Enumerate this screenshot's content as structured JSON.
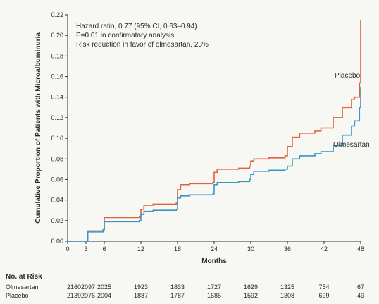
{
  "chart_data": {
    "type": "line",
    "xlabel": "Months",
    "ylabel": "Cumulative Proportion of Patients with Microalbuminuria",
    "xlim": [
      0,
      48
    ],
    "ylim": [
      0,
      0.22
    ],
    "xticks": [
      0,
      3,
      6,
      12,
      18,
      24,
      30,
      36,
      42,
      48
    ],
    "yticks": [
      "0.00",
      "0.02",
      "0.04",
      "0.06",
      "0.08",
      "0.10",
      "0.12",
      "0.14",
      "0.16",
      "0.18",
      "0.20",
      "0.22"
    ],
    "grid": false,
    "annotation": [
      "Hazard ratio, 0.77 (95% CI, 0.63–0.94)",
      "P=0.01 in confirmatory analysis",
      "Risk reduction in favor of olmesartan, 23%"
    ],
    "series": [
      {
        "name": "Placebo",
        "color": "#e0613a",
        "x": [
          0,
          3,
          3.3,
          5.8,
          6,
          11.8,
          12,
          12.5,
          14,
          17.8,
          18,
          18.5,
          20,
          23.8,
          24,
          24.5,
          28,
          29.8,
          30,
          30.5,
          33,
          35.6,
          36,
          36.8,
          38,
          40.5,
          41.5,
          43.5,
          45,
          46.5,
          47,
          47.8,
          48
        ],
        "y": [
          0.0,
          0.0,
          0.01,
          0.012,
          0.023,
          0.024,
          0.031,
          0.035,
          0.036,
          0.037,
          0.05,
          0.055,
          0.056,
          0.057,
          0.067,
          0.07,
          0.071,
          0.073,
          0.078,
          0.08,
          0.081,
          0.083,
          0.092,
          0.101,
          0.105,
          0.107,
          0.11,
          0.12,
          0.13,
          0.138,
          0.14,
          0.154,
          0.215
        ]
      },
      {
        "name": "Olmesartan",
        "color": "#3a95c2",
        "x": [
          0,
          3,
          3.3,
          5.8,
          6,
          11.8,
          12,
          12.5,
          14,
          17.8,
          18,
          18.5,
          20,
          23.8,
          24,
          24.5,
          28,
          29.8,
          30,
          30.5,
          33,
          35.6,
          36,
          36.8,
          38,
          40.5,
          41.5,
          43.5,
          45,
          46.5,
          47,
          47.8,
          48
        ],
        "y": [
          0.0,
          0.0,
          0.009,
          0.011,
          0.019,
          0.02,
          0.026,
          0.029,
          0.03,
          0.031,
          0.042,
          0.044,
          0.045,
          0.046,
          0.055,
          0.057,
          0.058,
          0.06,
          0.065,
          0.068,
          0.069,
          0.07,
          0.073,
          0.08,
          0.083,
          0.085,
          0.087,
          0.093,
          0.103,
          0.112,
          0.117,
          0.13,
          0.15
        ]
      }
    ]
  },
  "risk_table": {
    "title": "No. at Risk",
    "months": [
      0,
      3,
      6,
      12,
      18,
      24,
      30,
      36,
      42,
      48
    ],
    "rows": [
      {
        "label": "Olmesartan",
        "values": [
          "2160",
          "2097",
          "2025",
          "1923",
          "1833",
          "1727",
          "1629",
          "1325",
          "754",
          "67"
        ]
      },
      {
        "label": "Placebo",
        "values": [
          "2139",
          "2076",
          "2004",
          "1887",
          "1787",
          "1685",
          "1592",
          "1308",
          "699",
          "49"
        ]
      }
    ]
  }
}
